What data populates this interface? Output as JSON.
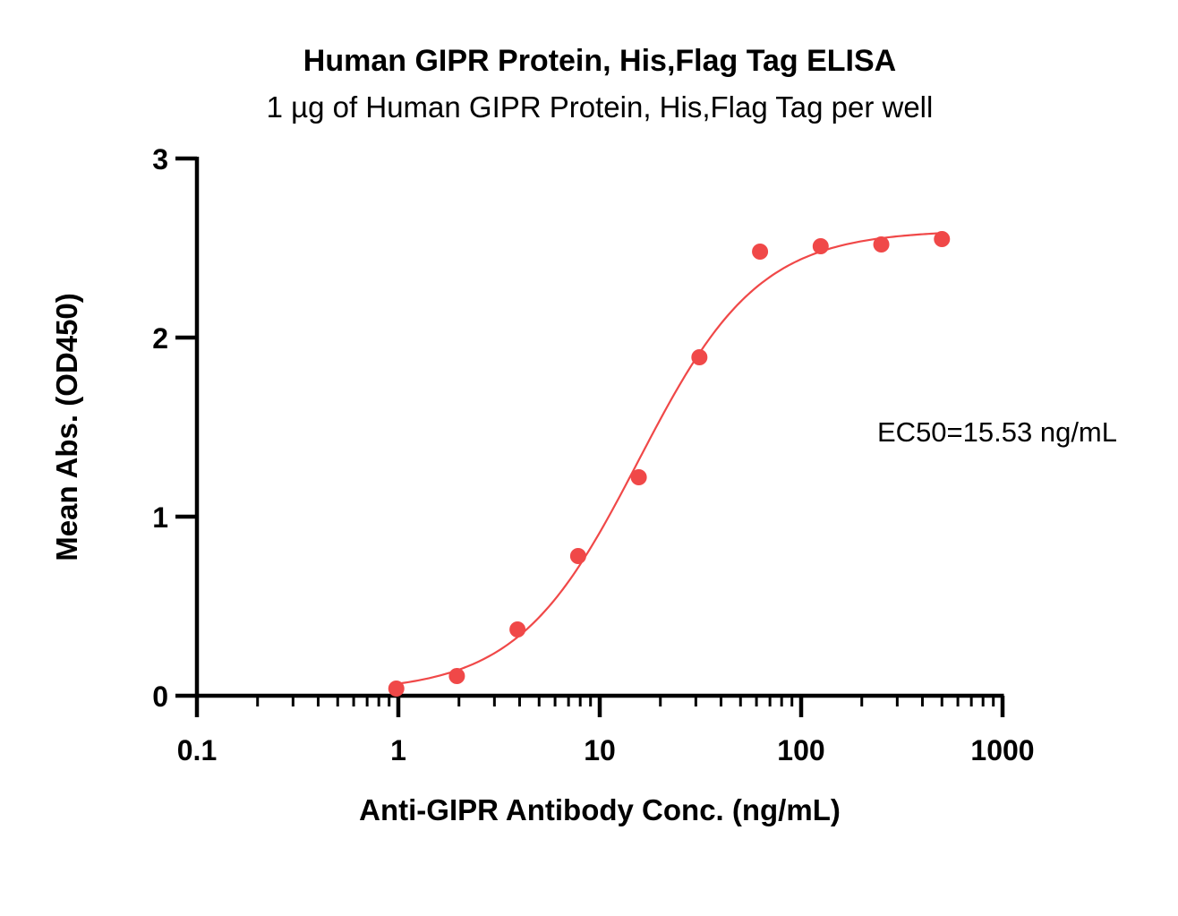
{
  "chart_data": {
    "type": "scatter",
    "title": "Human GIPR Protein, His,Flag Tag ELISA",
    "subtitle": "1 µg of Human GIPR Protein, His,Flag Tag per well",
    "xlabel": "Anti-GIPR Antibody Conc. (ng/mL)",
    "ylabel": "Mean Abs. (OD450)",
    "xscale": "log",
    "xlim": [
      0.1,
      1000
    ],
    "ylim": [
      0,
      3
    ],
    "x_ticks": [
      0.1,
      1,
      10,
      100,
      1000
    ],
    "x_tick_labels": [
      "0.1",
      "1",
      "10",
      "100",
      "1000"
    ],
    "y_ticks": [
      0,
      1,
      2,
      3
    ],
    "y_tick_labels": [
      "0",
      "1",
      "2",
      "3"
    ],
    "grid": false,
    "legend": "none",
    "color": "#f04848",
    "series": [
      {
        "x": [
          0.977,
          1.953,
          3.906,
          7.813,
          15.625,
          31.25,
          62.5,
          125,
          250,
          500
        ],
        "y": [
          0.04,
          0.11,
          0.37,
          0.78,
          1.22,
          1.89,
          2.48,
          2.51,
          2.52,
          2.55
        ]
      }
    ],
    "fit": {
      "model": "4PL",
      "bottom": 0.02,
      "top": 2.6,
      "ec50": 15.53,
      "hill": 1.45,
      "x_range": [
        0.977,
        500
      ]
    },
    "annotation": "EC50=15.53 ng/mL"
  }
}
